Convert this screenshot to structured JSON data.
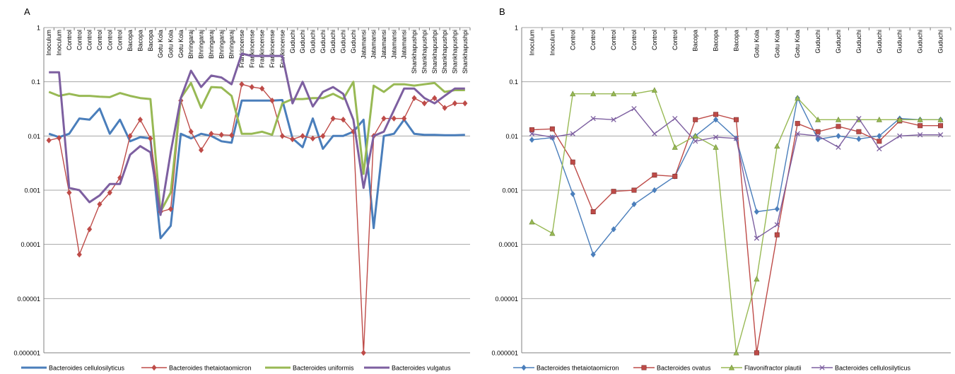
{
  "chart_data": [
    {
      "panel_label": "A",
      "type": "line",
      "yscale": "log",
      "ylim": [
        1e-06,
        1
      ],
      "yticks": [
        "1",
        "0.1",
        "0.01",
        "0.001",
        "0.0001",
        "0.00001",
        "0.000001"
      ],
      "grid": true,
      "legend_position": "bottom",
      "categories": [
        "Inoculum",
        "Inoculum",
        "Control",
        "Control",
        "Control",
        "Control",
        "Control",
        "Control",
        "Bacopa",
        "Bacopa",
        "Bacopa",
        "Gotu Kola",
        "Gotu Kola",
        "Gotu Kola",
        "Bhringaraj",
        "Bhringaraj",
        "Bhringaraj",
        "Bhringaraj",
        "Bhringaraj",
        "Frankincense",
        "Frankincense",
        "Frankincense",
        "Frankincense",
        "Frankincense",
        "Guduchi",
        "Guduchi",
        "Guduchi",
        "Guduchi",
        "Guduchi",
        "Guduchi",
        "Guduchi",
        "Jatamansi",
        "Jatamansi",
        "Jatamansi",
        "Jatamansi",
        "Jatamansi",
        "Shankhapushpi",
        "Shankhapushpi",
        "Shankhapushpi",
        "Shankhapushpi",
        "Shankhapushpi",
        "Shankhapushpi"
      ],
      "series": [
        {
          "name": "Bacteroides cellulosilyticus",
          "color": "#4a7ebb",
          "marker": "none",
          "width": 3,
          "values": [
            0.011,
            0.0095,
            0.011,
            0.021,
            0.02,
            0.032,
            0.011,
            0.02,
            0.008,
            0.0095,
            0.009,
            0.00013,
            0.00022,
            0.011,
            0.009,
            0.011,
            0.01,
            0.008,
            0.0075,
            0.045,
            0.045,
            0.045,
            0.045,
            0.046,
            0.009,
            0.0062,
            0.021,
            0.0058,
            0.01,
            0.01,
            0.012,
            0.02,
            0.0002,
            0.01,
            0.011,
            0.02,
            0.011,
            0.0105,
            0.0105,
            0.0103,
            0.0103,
            0.0105
          ]
        },
        {
          "name": "Bacteroides thetaiotaomicron",
          "color": "#be4b48",
          "marker": "diamond",
          "width": 1.4,
          "values": [
            0.0083,
            0.0092,
            0.0009,
            6.5e-05,
            0.00019,
            0.00055,
            0.0009,
            0.0017,
            0.01,
            0.02,
            0.009,
            0.0004,
            0.00045,
            0.045,
            0.012,
            0.0055,
            0.011,
            0.0105,
            0.0103,
            0.09,
            0.08,
            0.075,
            0.045,
            0.01,
            0.0087,
            0.01,
            0.009,
            0.01,
            0.021,
            0.02,
            0.012,
            1e-06,
            0.01,
            0.021,
            0.021,
            0.021,
            0.05,
            0.04,
            0.05,
            0.033,
            0.04,
            0.04
          ]
        },
        {
          "name": "Bacteroides uniformis",
          "color": "#98b954",
          "marker": "none",
          "width": 3,
          "values": [
            0.065,
            0.055,
            0.06,
            0.055,
            0.055,
            0.053,
            0.052,
            0.062,
            0.055,
            0.05,
            0.048,
            0.0004,
            0.0009,
            0.05,
            0.095,
            0.033,
            0.08,
            0.078,
            0.055,
            0.011,
            0.011,
            0.012,
            0.0105,
            0.04,
            0.048,
            0.048,
            0.05,
            0.05,
            0.06,
            0.048,
            0.1,
            0.002,
            0.085,
            0.065,
            0.09,
            0.09,
            0.085,
            0.09,
            0.095,
            0.065,
            0.07,
            0.07
          ]
        },
        {
          "name": "Bacteroides vulgatus",
          "color": "#7d5fa0",
          "marker": "none",
          "width": 3,
          "values": [
            0.15,
            0.15,
            0.0011,
            0.001,
            0.0006,
            0.0008,
            0.0013,
            0.0013,
            0.0045,
            0.0065,
            0.005,
            0.00035,
            0.005,
            0.05,
            0.16,
            0.08,
            0.13,
            0.12,
            0.09,
            0.33,
            0.3,
            0.3,
            0.3,
            0.3,
            0.04,
            0.1,
            0.035,
            0.065,
            0.08,
            0.06,
            0.02,
            0.0011,
            0.01,
            0.012,
            0.03,
            0.075,
            0.075,
            0.05,
            0.04,
            0.055,
            0.075,
            0.075
          ]
        }
      ]
    },
    {
      "panel_label": "B",
      "type": "line",
      "yscale": "log",
      "ylim": [
        1e-06,
        1
      ],
      "yticks": [
        "1",
        "0.1",
        "0.01",
        "0.001",
        "0.0001",
        "0.00001",
        "0.000001"
      ],
      "grid": true,
      "legend_position": "bottom",
      "categories": [
        "Inoculum",
        "Inoculum",
        "Control",
        "Control",
        "Control",
        "Control",
        "Control",
        "Control",
        "Bacopa",
        "Bacopa",
        "Bacopa",
        "Gotu Kola",
        "Gotu Kola",
        "Gotu Kola",
        "Guduchi",
        "Guduchi",
        "Guduchi",
        "Guduchi",
        "Guduchi",
        "Guduchi",
        "Guduchi"
      ],
      "series": [
        {
          "name": "Bacteroides thetaiotaomicron",
          "color": "#4a7ebb",
          "marker": "diamond",
          "width": 1.4,
          "values": [
            0.0085,
            0.0093,
            0.00085,
            6.5e-05,
            0.00019,
            0.00055,
            0.001,
            0.0018,
            0.01,
            0.02,
            0.009,
            0.0004,
            0.00045,
            0.05,
            0.0087,
            0.01,
            0.0088,
            0.01,
            0.021,
            0.02,
            0.02
          ]
        },
        {
          "name": "Bacteroides ovatus",
          "color": "#be4b48",
          "marker": "square",
          "width": 1.4,
          "values": [
            0.013,
            0.0135,
            0.0033,
            0.0004,
            0.00095,
            0.001,
            0.0019,
            0.0018,
            0.02,
            0.025,
            0.02,
            1e-06,
            0.00015,
            0.017,
            0.012,
            0.015,
            0.012,
            0.008,
            0.019,
            0.0155,
            0.0155
          ]
        },
        {
          "name": "Flavonifractor plautii",
          "color": "#98b954",
          "marker": "triangle",
          "width": 1.4,
          "values": [
            0.00026,
            0.00016,
            0.06,
            0.06,
            0.06,
            0.06,
            0.07,
            0.0062,
            0.01,
            0.0062,
            1e-06,
            2.3e-05,
            0.0065,
            0.05,
            0.02,
            0.02,
            0.02,
            0.02,
            0.02,
            0.02,
            0.02
          ]
        },
        {
          "name": "Bacteroides cellulosilyticus",
          "color": "#7d5fa0",
          "marker": "x",
          "width": 1.4,
          "values": [
            0.011,
            0.0095,
            0.011,
            0.021,
            0.02,
            0.032,
            0.011,
            0.021,
            0.008,
            0.0095,
            0.009,
            0.00013,
            0.00023,
            0.011,
            0.01,
            0.0062,
            0.021,
            0.0058,
            0.01,
            0.0105,
            0.0105
          ]
        }
      ]
    }
  ]
}
